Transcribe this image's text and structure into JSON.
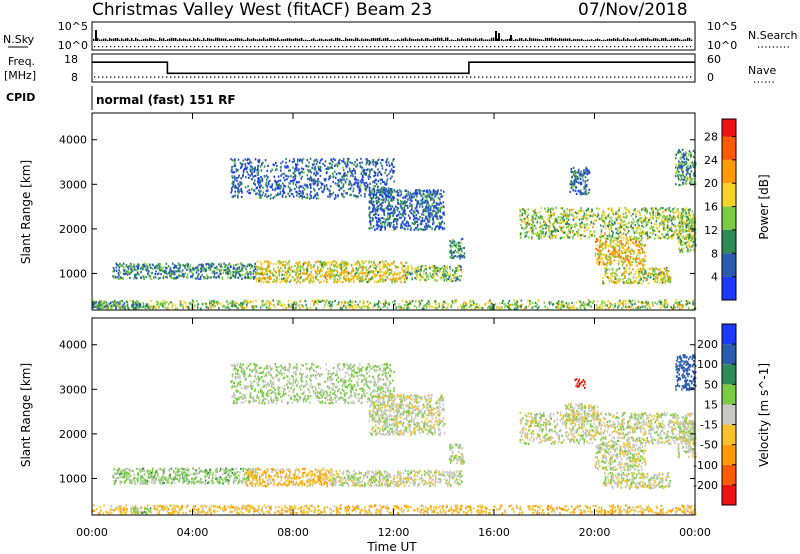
{
  "header": {
    "title": "Christmas Valley West (fitACF)",
    "beam": "Beam 23",
    "date": "07/Nov/2018"
  },
  "nsky_panel": {
    "left_label": "N.Sky",
    "right_label": "N.Search",
    "left_ticks": [
      "10^5",
      "10^0"
    ],
    "right_ticks": [
      "10^5",
      "10^0"
    ]
  },
  "freq_panel": {
    "left_label_1": "Freq.",
    "left_label_2": "[MHz]",
    "right_label": "Nave",
    "left_ticks": [
      "18",
      "8"
    ],
    "right_ticks": [
      "60",
      "0"
    ],
    "freq_steps": [
      {
        "from_h": 0,
        "to_h": 3.0,
        "mhz": 15.4
      },
      {
        "from_h": 3.0,
        "to_h": 15.0,
        "mhz": 10.8
      },
      {
        "from_h": 15.0,
        "to_h": 24.0,
        "mhz": 15.4
      }
    ],
    "nave_level": 9
  },
  "cpid": {
    "label": "CPID",
    "mode": "normal (fast) 151 RF"
  },
  "chart_data": [
    {
      "type": "heatmap",
      "name": "power",
      "ylabel": "Slant Range [km]",
      "xlabel": "",
      "xlim": [
        0,
        24
      ],
      "ylim": [
        180,
        4600
      ],
      "yticks": [
        1000,
        2000,
        3000,
        4000
      ],
      "colorbar": {
        "label": "Power [dB]",
        "ticks": [
          "4",
          "8",
          "12",
          "16",
          "20",
          "24",
          "28"
        ],
        "tick_values": [
          4,
          8,
          12,
          16,
          20,
          24,
          28
        ],
        "range": [
          0,
          31
        ],
        "colors": [
          "#1a3aff",
          "#2a5cae",
          "#2e8b57",
          "#7acc44",
          "#f7d229",
          "#ff9a00",
          "#ff5a00",
          "#ee1111"
        ]
      },
      "regions": [
        {
          "t0": 0.0,
          "t1": 24.0,
          "r0": 230,
          "r1": 420,
          "level": 0.45
        },
        {
          "t0": 0.0,
          "t1": 2.3,
          "r0": 230,
          "r1": 380,
          "level": 0.25
        },
        {
          "t0": 0.8,
          "t1": 6.5,
          "r0": 900,
          "r1": 1250,
          "level": 0.25
        },
        {
          "t0": 6.5,
          "t1": 12.5,
          "r0": 820,
          "r1": 1300,
          "level": 0.55
        },
        {
          "t0": 12.5,
          "t1": 14.7,
          "r0": 850,
          "r1": 1200,
          "level": 0.4
        },
        {
          "t0": 14.2,
          "t1": 14.8,
          "r0": 1350,
          "r1": 1800,
          "level": 0.3
        },
        {
          "t0": 5.5,
          "t1": 12.0,
          "r0": 2700,
          "r1": 3600,
          "level": 0.15
        },
        {
          "t0": 11.0,
          "t1": 14.0,
          "r0": 2000,
          "r1": 2900,
          "level": 0.15
        },
        {
          "t0": 17.0,
          "t1": 24.0,
          "r0": 1800,
          "r1": 2500,
          "level": 0.45
        },
        {
          "t0": 20.0,
          "t1": 22.0,
          "r0": 1200,
          "r1": 1800,
          "level": 0.62
        },
        {
          "t0": 20.3,
          "t1": 23.0,
          "r0": 800,
          "r1": 1150,
          "level": 0.5
        },
        {
          "t0": 19.0,
          "t1": 19.8,
          "r0": 2800,
          "r1": 3400,
          "level": 0.2
        },
        {
          "t0": 23.3,
          "t1": 24.0,
          "r0": 1500,
          "r1": 2300,
          "level": 0.45
        },
        {
          "t0": 23.2,
          "t1": 24.0,
          "r0": 3000,
          "r1": 3800,
          "level": 0.3
        }
      ]
    },
    {
      "type": "heatmap",
      "name": "velocity",
      "ylabel": "Slant Range [km]",
      "xlabel": "Time UT",
      "xticks": [
        "00:00",
        "04:00",
        "08:00",
        "12:00",
        "16:00",
        "20:00",
        "00:00"
      ],
      "xtick_values": [
        0,
        4,
        8,
        12,
        16,
        20,
        24
      ],
      "xlim": [
        0,
        24
      ],
      "ylim": [
        180,
        4600
      ],
      "yticks": [
        1000,
        2000,
        3000,
        4000
      ],
      "colorbar": {
        "label": "Velocity [m s^-1]",
        "ticks": [
          "-200",
          "-100",
          "-50",
          "-15",
          "15",
          "50",
          "100",
          "200"
        ],
        "tick_values": [
          -200,
          -100,
          -50,
          -15,
          15,
          50,
          100,
          200
        ],
        "range": [
          -250,
          250
        ],
        "colors": [
          "#ee1111",
          "#ff5a00",
          "#ff9a00",
          "#f7c22a",
          "#c8c8c4",
          "#7acc44",
          "#2e8b57",
          "#2a5cae",
          "#1a3aff"
        ]
      },
      "regions": [
        {
          "t0": 0.0,
          "t1": 24.0,
          "r0": 230,
          "r1": 420,
          "vel": -35
        },
        {
          "t0": 1.5,
          "t1": 2.3,
          "r0": 230,
          "r1": 380,
          "vel": 30
        },
        {
          "t0": 0.8,
          "t1": 6.5,
          "r0": 900,
          "r1": 1250,
          "vel": 25
        },
        {
          "t0": 6.0,
          "t1": 9.5,
          "r0": 850,
          "r1": 1250,
          "vel": -35
        },
        {
          "t0": 9.5,
          "t1": 14.7,
          "r0": 850,
          "r1": 1200,
          "vel": 0
        },
        {
          "t0": 14.2,
          "t1": 14.8,
          "r0": 1350,
          "r1": 1800,
          "vel": 0
        },
        {
          "t0": 5.5,
          "t1": 12.0,
          "r0": 2700,
          "r1": 3600,
          "vel": 20
        },
        {
          "t0": 11.0,
          "t1": 14.0,
          "r0": 2000,
          "r1": 2900,
          "vel": 0
        },
        {
          "t0": 17.0,
          "t1": 24.0,
          "r0": 1800,
          "r1": 2500,
          "vel": 0
        },
        {
          "t0": 18.8,
          "t1": 20.2,
          "r0": 2300,
          "r1": 2700,
          "vel": 0
        },
        {
          "t0": 20.0,
          "t1": 22.0,
          "r0": 1200,
          "r1": 1800,
          "vel": 0
        },
        {
          "t0": 20.3,
          "t1": 23.0,
          "r0": 800,
          "r1": 1150,
          "vel": 0
        },
        {
          "t0": 19.2,
          "t1": 19.6,
          "r0": 3050,
          "r1": 3250,
          "vel": -220
        },
        {
          "t0": 23.3,
          "t1": 24.0,
          "r0": 1500,
          "r1": 2300,
          "vel": 0
        },
        {
          "t0": 23.2,
          "t1": 24.0,
          "r0": 3000,
          "r1": 3800,
          "vel": 150
        }
      ]
    }
  ]
}
